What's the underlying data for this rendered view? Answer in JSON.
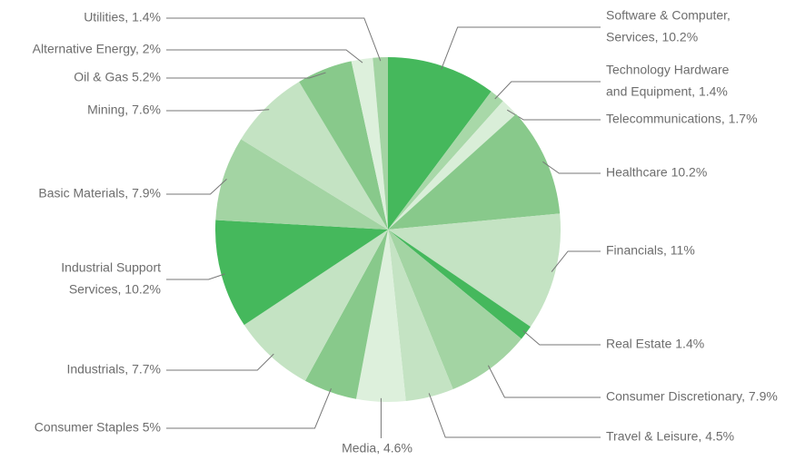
{
  "chart_data": {
    "type": "pie",
    "categories": [
      [
        "Software & Computer,",
        "Services, 10.2%"
      ],
      [
        "Technology Hardware",
        "and Equipment, 1.4%"
      ],
      [
        "Telecommunications, 1.7%"
      ],
      [
        "Healthcare 10.2%"
      ],
      [
        "Financials, 11%"
      ],
      [
        "Real Estate 1.4%"
      ],
      [
        "Consumer Discretionary, 7.9%"
      ],
      [
        "Travel & Leisure, 4.5%"
      ],
      [
        "Media, 4.6%"
      ],
      [
        "Consumer Staples 5%"
      ],
      [
        "Industrials, 7.7%"
      ],
      [
        "Industrial Support",
        "Services, 10.2%"
      ],
      [
        "Basic Materials, 7.9%"
      ],
      [
        "Mining, 7.6%"
      ],
      [
        "Oil & Gas 5.2%"
      ],
      [
        "Alternative Energy, 2%"
      ],
      [
        "Utilities, 1.4%"
      ]
    ],
    "values": [
      10.2,
      1.4,
      1.7,
      10.2,
      11,
      1.4,
      7.9,
      4.5,
      4.6,
      5,
      7.7,
      10.2,
      7.9,
      7.6,
      5.2,
      2,
      1.4
    ],
    "colors": [
      "#45b85c",
      "#a8d8a8",
      "#d9eed8",
      "#88c98b",
      "#c4e3c3",
      "#45b85c",
      "#a3d4a3",
      "#c4e3c3",
      "#ddf0dc",
      "#88c98b",
      "#c4e3c3",
      "#45b85c",
      "#a3d4a3",
      "#c4e3c3",
      "#88c98b",
      "#ddf0dc",
      "#a3d4a3"
    ]
  }
}
